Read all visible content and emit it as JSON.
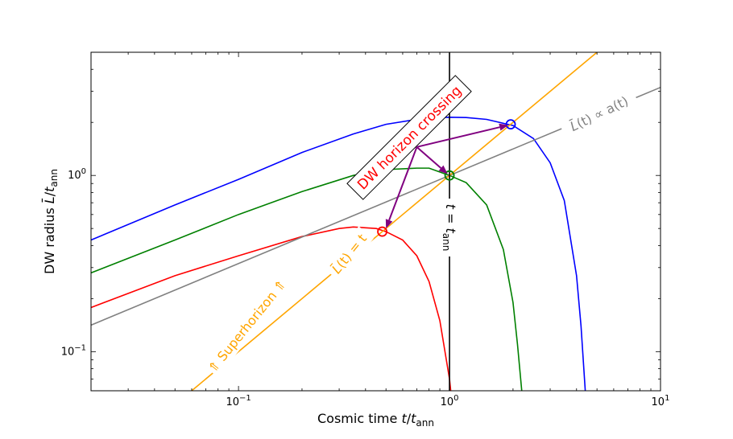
{
  "chart_data": {
    "type": "line",
    "x_scale": "log",
    "y_scale": "log",
    "xlim": [
      0.02,
      10
    ],
    "ylim": [
      0.06,
      5
    ],
    "xlabel": "Cosmic time t/t_ann",
    "xlabel_parts": {
      "main": "Cosmic time ",
      "var": "t",
      "slash": "/",
      "sub_var": "t",
      "sub": "ann"
    },
    "ylabel": "DW radius L̄/t_ann",
    "ylabel_parts": {
      "main": "DW radius ",
      "var": "L̄",
      "slash": "/",
      "sub_var": "t",
      "sub": "ann"
    },
    "x_ticks": [
      {
        "value": 0.1,
        "base": "10",
        "exp": "−1"
      },
      {
        "value": 1,
        "base": "10",
        "exp": "0"
      },
      {
        "value": 10,
        "base": "10",
        "exp": "1"
      }
    ],
    "y_ticks": [
      {
        "value": 0.1,
        "base": "10",
        "exp": "−1"
      },
      {
        "value": 1,
        "base": "10",
        "exp": "0"
      }
    ],
    "series": [
      {
        "color": "#0000ff",
        "x": [
          0.02,
          0.05,
          0.1,
          0.2,
          0.35,
          0.5,
          0.7,
          0.9,
          1.0,
          1.2,
          1.5,
          2.0,
          2.5,
          3.0,
          3.5,
          4.0,
          4.2,
          4.4,
          4.5
        ],
        "y": [
          0.43,
          0.68,
          0.95,
          1.35,
          1.72,
          1.95,
          2.08,
          2.13,
          2.14,
          2.13,
          2.08,
          1.92,
          1.62,
          1.18,
          0.72,
          0.27,
          0.14,
          0.06,
          0.03
        ]
      },
      {
        "color": "#008000",
        "x": [
          0.02,
          0.05,
          0.1,
          0.2,
          0.35,
          0.5,
          0.7,
          0.8,
          1.0,
          1.2,
          1.5,
          1.8,
          2.0,
          2.1,
          2.2,
          2.25
        ],
        "y": [
          0.28,
          0.43,
          0.6,
          0.81,
          1.0,
          1.08,
          1.1,
          1.1,
          1.0,
          0.91,
          0.68,
          0.38,
          0.19,
          0.11,
          0.06,
          0.035
        ]
      },
      {
        "color": "#ff0000",
        "x": [
          0.02,
          0.05,
          0.1,
          0.2,
          0.3,
          0.35,
          0.45,
          0.5,
          0.6,
          0.7,
          0.8,
          0.9,
          1.0,
          1.05
        ],
        "y": [
          0.178,
          0.27,
          0.35,
          0.45,
          0.5,
          0.51,
          0.5,
          0.48,
          0.43,
          0.35,
          0.25,
          0.15,
          0.07,
          0.04
        ]
      },
      {
        "color": "#808080",
        "x": [
          0.02,
          10
        ],
        "y": [
          0.1414,
          3.16
        ]
      },
      {
        "color": "#ffa500",
        "x": [
          0.06,
          5
        ],
        "y": [
          0.06,
          5
        ]
      }
    ],
    "vline": {
      "x": 1.0,
      "color": "#000000",
      "label_var": "t",
      "label_eq": " = ",
      "label_sub_var": "t",
      "label_sub": "ann"
    },
    "markers": [
      {
        "x": 1.95,
        "y": 1.95,
        "color": "#0000ff"
      },
      {
        "x": 1.0,
        "y": 1.0,
        "color": "#008000"
      },
      {
        "x": 0.48,
        "y": 0.48,
        "color": "#ff0000"
      }
    ],
    "arrows": {
      "color": "#800080",
      "origin": {
        "x": 0.7,
        "y": 1.45
      },
      "targets": [
        {
          "x": 1.9,
          "y": 1.93
        },
        {
          "x": 0.98,
          "y": 1.02
        },
        {
          "x": 0.5,
          "y": 0.5
        }
      ]
    },
    "annotations": {
      "box_text": "DW horizon crossing",
      "box_color": "#ff0000",
      "orange_text": "L̄(t) = t",
      "orange_label": {
        "var": "L̄",
        "arg": "(t) = t"
      },
      "superhorizon_text": "⇑ Superhorizon ⇑",
      "gray_text": "L̄(t) ∝ a(t)",
      "gray_label": {
        "var": "L̄",
        "arg": "(t) ∝ a(t)"
      }
    }
  }
}
